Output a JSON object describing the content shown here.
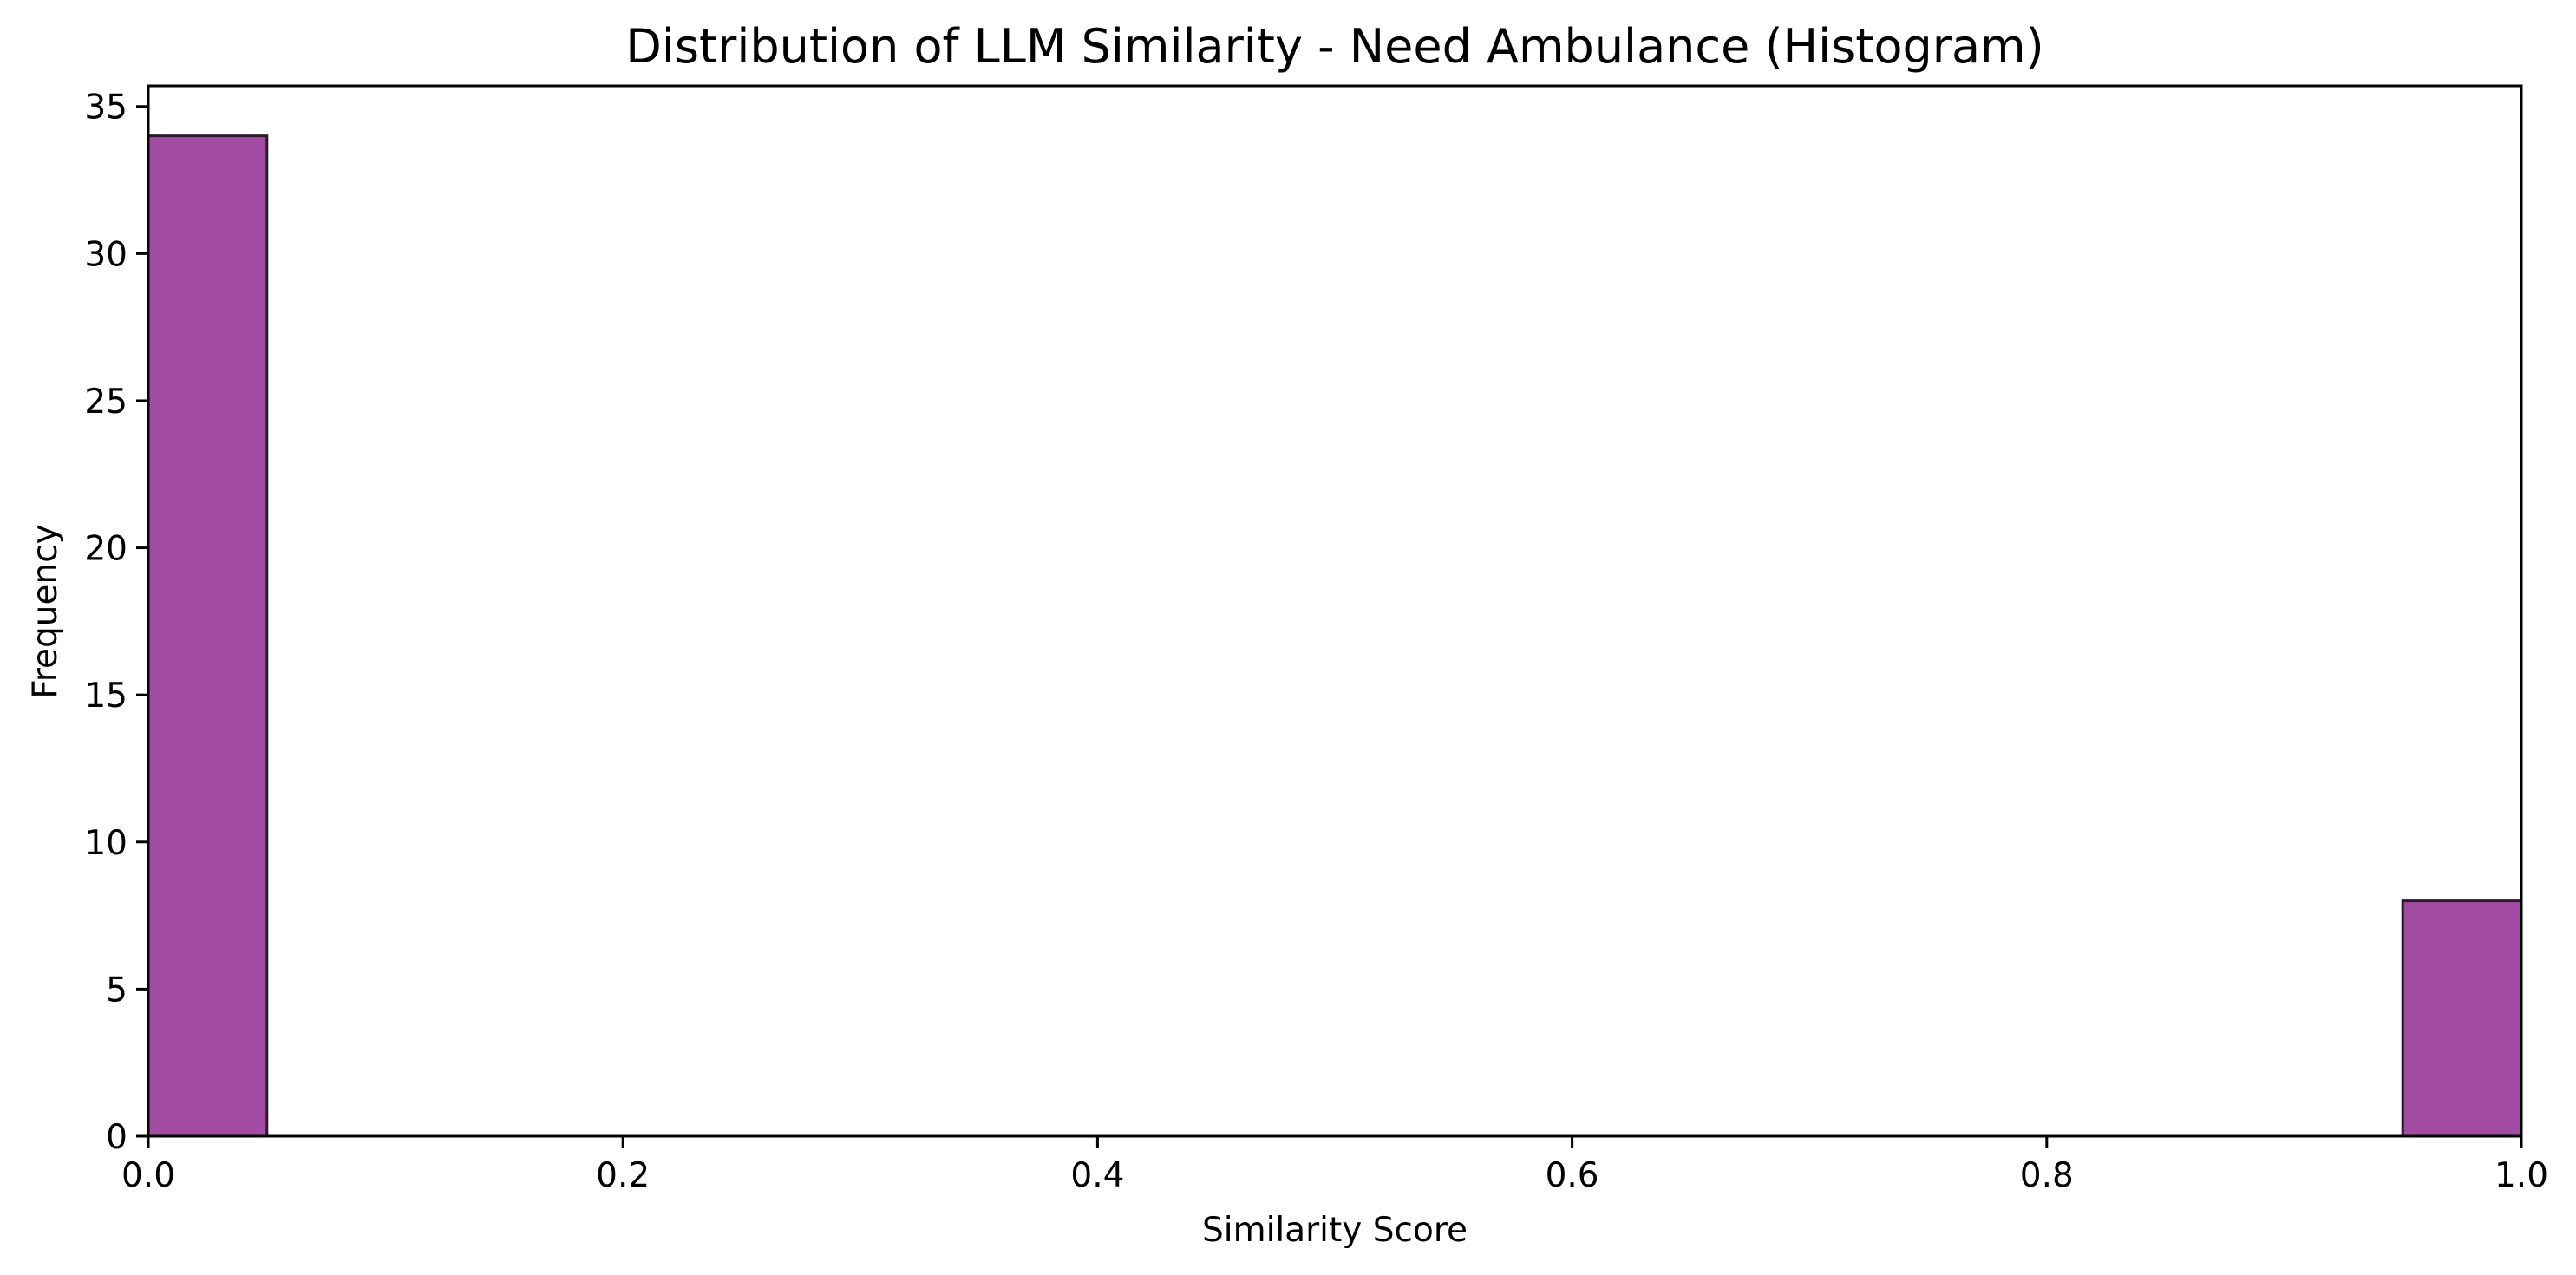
{
  "chart_data": {
    "type": "bar",
    "subtype": "histogram",
    "title": "Distribution of LLM Similarity - Need Ambulance (Histogram)",
    "xlabel": "Similarity Score",
    "ylabel": "Frequency",
    "xlim": [
      0.0,
      1.0
    ],
    "ylim": [
      0,
      35.7
    ],
    "x_ticks": [
      0.0,
      0.2,
      0.4,
      0.6,
      0.8,
      1.0
    ],
    "x_tick_labels": [
      "0.0",
      "0.2",
      "0.4",
      "0.6",
      "0.8",
      "1.0"
    ],
    "y_ticks": [
      0,
      5,
      10,
      15,
      20,
      25,
      30,
      35
    ],
    "y_tick_labels": [
      "0",
      "5",
      "10",
      "15",
      "20",
      "25",
      "30",
      "35"
    ],
    "bin_width": 0.05,
    "bins": [
      {
        "start": 0.0,
        "end": 0.05,
        "count": 34
      },
      {
        "start": 0.95,
        "end": 1.0,
        "count": 8
      }
    ],
    "bar_color": "#a24ba2",
    "bar_edge_color": "#2b1a2b",
    "grid": false,
    "legend": false
  }
}
